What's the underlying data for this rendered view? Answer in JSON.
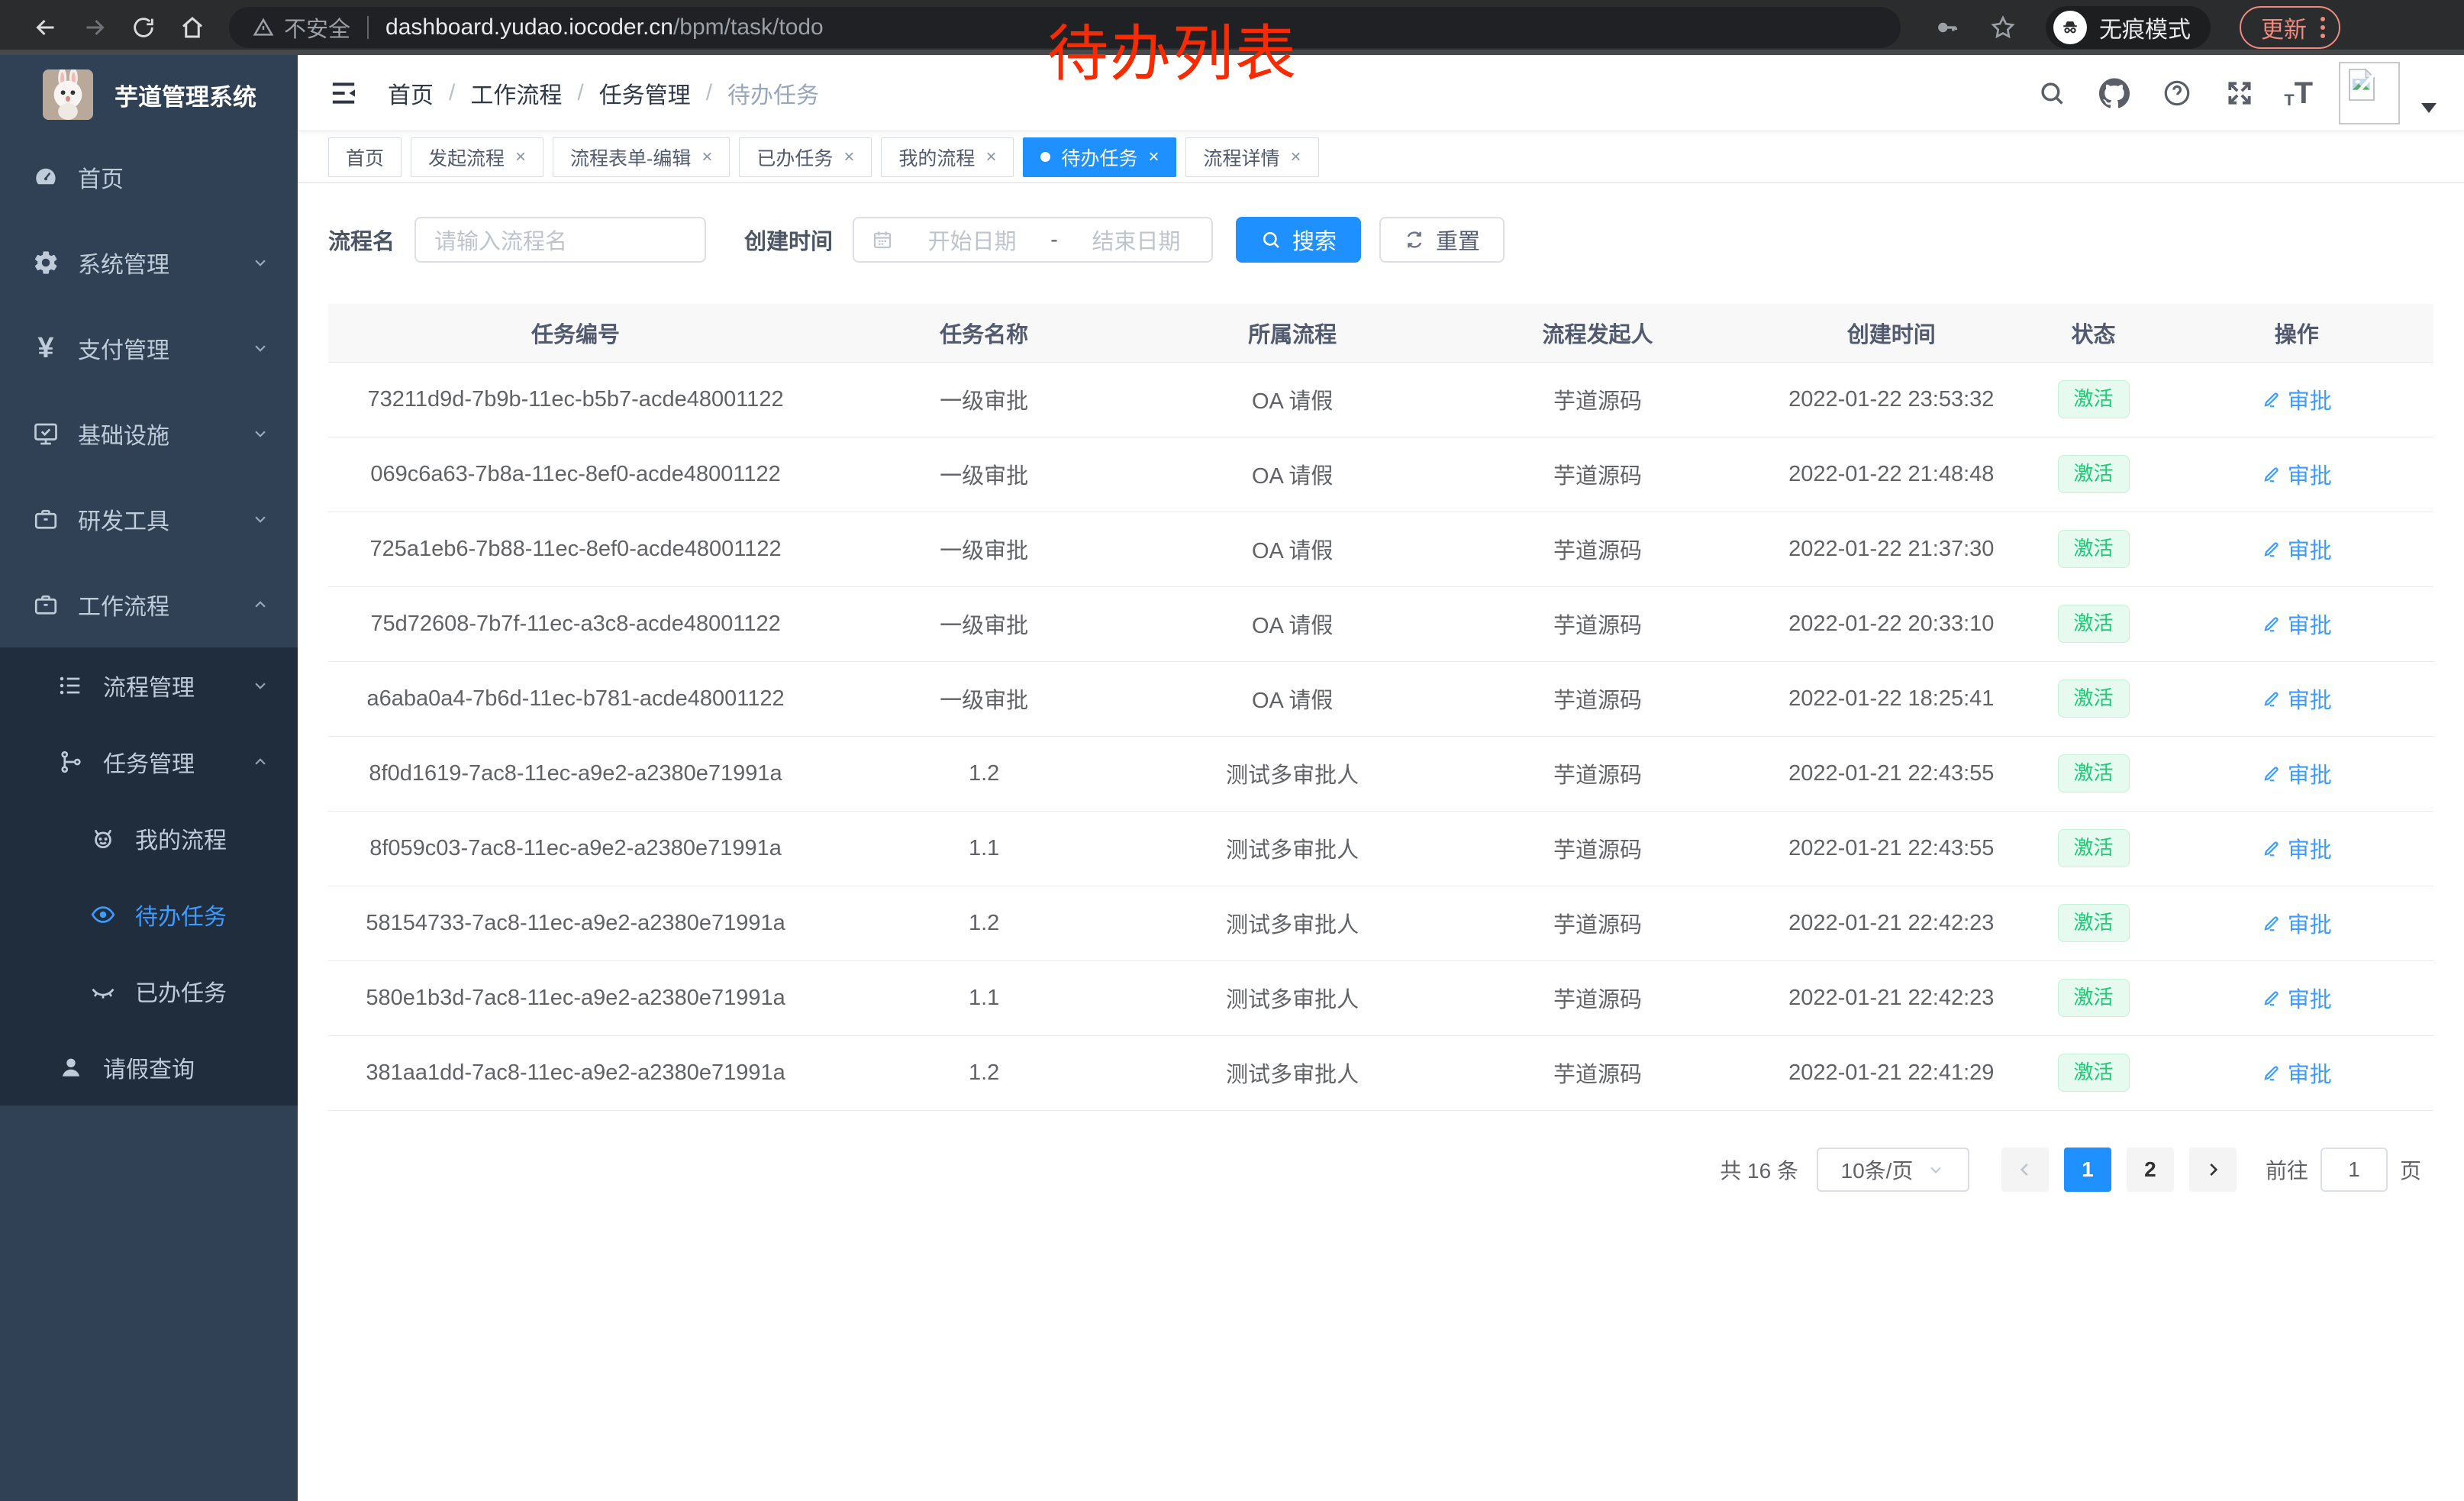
{
  "browser": {
    "security_label": "不安全",
    "url_host": "dashboard.yudao.iocoder.cn",
    "url_path": "/bpm/task/todo",
    "incognito_label": "无痕模式",
    "update_label": "更新"
  },
  "annotation": {
    "text": "待办列表",
    "color": "#f72a00"
  },
  "sidebar": {
    "title": "芋道管理系统",
    "items": [
      {
        "id": "home",
        "icon": "dashboard-icon",
        "label": "首页",
        "level": 1,
        "arrow": "",
        "dark": false,
        "active": false
      },
      {
        "id": "system",
        "icon": "gear-icon",
        "label": "系统管理",
        "level": 1,
        "arrow": "down",
        "dark": false,
        "active": false
      },
      {
        "id": "payment",
        "icon": "yen-icon",
        "label": "支付管理",
        "level": 1,
        "arrow": "down",
        "dark": false,
        "active": false
      },
      {
        "id": "infra",
        "icon": "monitor-icon",
        "label": "基础设施",
        "level": 1,
        "arrow": "down",
        "dark": false,
        "active": false
      },
      {
        "id": "devtools",
        "icon": "briefcase-icon",
        "label": "研发工具",
        "level": 1,
        "arrow": "down",
        "dark": false,
        "active": false
      },
      {
        "id": "workflow",
        "icon": "briefcase-icon",
        "label": "工作流程",
        "level": 1,
        "arrow": "up",
        "dark": false,
        "active": false
      },
      {
        "id": "process-mgmt",
        "icon": "list-icon",
        "label": "流程管理",
        "level": 2,
        "arrow": "down",
        "dark": true,
        "active": false
      },
      {
        "id": "task-mgmt",
        "icon": "tree-icon",
        "label": "任务管理",
        "level": 2,
        "arrow": "up",
        "dark": true,
        "active": false
      },
      {
        "id": "my-process",
        "icon": "robot-icon",
        "label": "我的流程",
        "level": 3,
        "arrow": "",
        "dark": true,
        "active": false
      },
      {
        "id": "todo-task",
        "icon": "eye-icon",
        "label": "待办任务",
        "level": 3,
        "arrow": "",
        "dark": true,
        "active": true
      },
      {
        "id": "done-task",
        "icon": "eye-closed-icon",
        "label": "已办任务",
        "level": 3,
        "arrow": "",
        "dark": true,
        "active": false
      },
      {
        "id": "leave-query",
        "icon": "user-icon",
        "label": "请假查询",
        "level": 2,
        "arrow": "",
        "dark": true,
        "active": false
      }
    ]
  },
  "navbar": {
    "breadcrumb": [
      "首页",
      "工作流程",
      "任务管理",
      "待办任务"
    ]
  },
  "tabs": [
    {
      "label": "首页",
      "closable": false,
      "active": false
    },
    {
      "label": "发起流程",
      "closable": true,
      "active": false
    },
    {
      "label": "流程表单-编辑",
      "closable": true,
      "active": false
    },
    {
      "label": "已办任务",
      "closable": true,
      "active": false
    },
    {
      "label": "我的流程",
      "closable": true,
      "active": false
    },
    {
      "label": "待办任务",
      "closable": true,
      "active": true
    },
    {
      "label": "流程详情",
      "closable": true,
      "active": false
    }
  ],
  "filters": {
    "name_label": "流程名",
    "name_placeholder": "请输入流程名",
    "time_label": "创建时间",
    "start_placeholder": "开始日期",
    "range_separator": "-",
    "end_placeholder": "结束日期",
    "search_label": "搜索",
    "reset_label": "重置"
  },
  "table": {
    "headers": [
      "任务编号",
      "任务名称",
      "所属流程",
      "流程发起人",
      "创建时间",
      "状态",
      "操作"
    ],
    "action_label": "审批",
    "rows": [
      {
        "id": "73211d9d-7b9b-11ec-b5b7-acde48001122",
        "name": "一级审批",
        "process": "OA 请假",
        "initiator": "芋道源码",
        "created": "2022-01-22 23:53:32",
        "status": "激活"
      },
      {
        "id": "069c6a63-7b8a-11ec-8ef0-acde48001122",
        "name": "一级审批",
        "process": "OA 请假",
        "initiator": "芋道源码",
        "created": "2022-01-22 21:48:48",
        "status": "激活"
      },
      {
        "id": "725a1eb6-7b88-11ec-8ef0-acde48001122",
        "name": "一级审批",
        "process": "OA 请假",
        "initiator": "芋道源码",
        "created": "2022-01-22 21:37:30",
        "status": "激活"
      },
      {
        "id": "75d72608-7b7f-11ec-a3c8-acde48001122",
        "name": "一级审批",
        "process": "OA 请假",
        "initiator": "芋道源码",
        "created": "2022-01-22 20:33:10",
        "status": "激活"
      },
      {
        "id": "a6aba0a4-7b6d-11ec-b781-acde48001122",
        "name": "一级审批",
        "process": "OA 请假",
        "initiator": "芋道源码",
        "created": "2022-01-22 18:25:41",
        "status": "激活"
      },
      {
        "id": "8f0d1619-7ac8-11ec-a9e2-a2380e71991a",
        "name": "1.2",
        "process": "测试多审批人",
        "initiator": "芋道源码",
        "created": "2022-01-21 22:43:55",
        "status": "激活"
      },
      {
        "id": "8f059c03-7ac8-11ec-a9e2-a2380e71991a",
        "name": "1.1",
        "process": "测试多审批人",
        "initiator": "芋道源码",
        "created": "2022-01-21 22:43:55",
        "status": "激活"
      },
      {
        "id": "58154733-7ac8-11ec-a9e2-a2380e71991a",
        "name": "1.2",
        "process": "测试多审批人",
        "initiator": "芋道源码",
        "created": "2022-01-21 22:42:23",
        "status": "激活"
      },
      {
        "id": "580e1b3d-7ac8-11ec-a9e2-a2380e71991a",
        "name": "1.1",
        "process": "测试多审批人",
        "initiator": "芋道源码",
        "created": "2022-01-21 22:42:23",
        "status": "激活"
      },
      {
        "id": "381aa1dd-7ac8-11ec-a9e2-a2380e71991a",
        "name": "1.2",
        "process": "测试多审批人",
        "initiator": "芋道源码",
        "created": "2022-01-21 22:41:29",
        "status": "激活"
      }
    ]
  },
  "pagination": {
    "total_label": "共 16 条",
    "page_size": "10条/页",
    "pages": [
      "1",
      "2"
    ],
    "active_page": "1",
    "goto_label": "前往",
    "goto_value": "1",
    "page_unit": "页"
  },
  "colors": {
    "accent": "#1e90ff",
    "link": "#3e9bff",
    "success": "#18cd74",
    "sidebar_bg": "#304156",
    "sidebar_dark_bg": "#1f2d3d"
  }
}
